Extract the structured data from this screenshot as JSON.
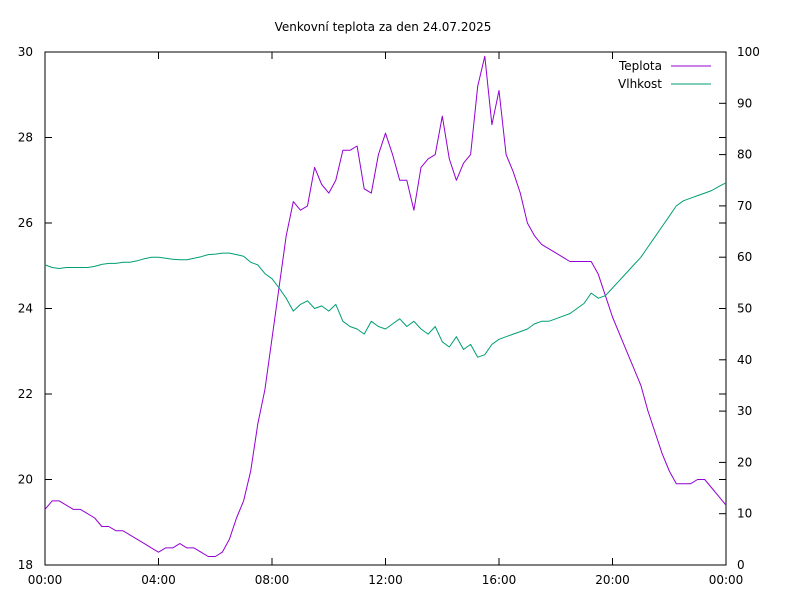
{
  "chart_data": {
    "type": "line",
    "title": "Venkovní teplota za den 24.07.2025",
    "xlabel": "",
    "ylabel": "",
    "y2label": "",
    "x_ticks": [
      "00:00",
      "04:00",
      "08:00",
      "12:00",
      "16:00",
      "20:00",
      "00:00"
    ],
    "x_range_hours": [
      0,
      24
    ],
    "y_left": {
      "range": [
        18,
        30
      ],
      "ticks": [
        "18",
        "20",
        "22",
        "24",
        "26",
        "28",
        "30"
      ]
    },
    "y_right": {
      "range": [
        0,
        100
      ],
      "ticks": [
        "0",
        "10",
        "20",
        "30",
        "40",
        "50",
        "60",
        "70",
        "80",
        "90",
        "100"
      ]
    },
    "grid": false,
    "legend_position": "top-right",
    "series": [
      {
        "name": "Teplota",
        "axis": "left",
        "color": "#9400d3",
        "points": [
          [
            0.0,
            19.3
          ],
          [
            0.25,
            19.5
          ],
          [
            0.5,
            19.5
          ],
          [
            0.75,
            19.4
          ],
          [
            1.0,
            19.3
          ],
          [
            1.25,
            19.3
          ],
          [
            1.5,
            19.2
          ],
          [
            1.75,
            19.1
          ],
          [
            2.0,
            18.9
          ],
          [
            2.25,
            18.9
          ],
          [
            2.5,
            18.8
          ],
          [
            2.75,
            18.8
          ],
          [
            3.0,
            18.7
          ],
          [
            3.25,
            18.6
          ],
          [
            3.5,
            18.5
          ],
          [
            3.75,
            18.4
          ],
          [
            4.0,
            18.3
          ],
          [
            4.25,
            18.4
          ],
          [
            4.5,
            18.4
          ],
          [
            4.75,
            18.5
          ],
          [
            5.0,
            18.4
          ],
          [
            5.25,
            18.4
          ],
          [
            5.5,
            18.3
          ],
          [
            5.75,
            18.2
          ],
          [
            6.0,
            18.2
          ],
          [
            6.25,
            18.3
          ],
          [
            6.5,
            18.6
          ],
          [
            6.75,
            19.1
          ],
          [
            7.0,
            19.5
          ],
          [
            7.25,
            20.2
          ],
          [
            7.5,
            21.3
          ],
          [
            7.75,
            22.1
          ],
          [
            8.0,
            23.3
          ],
          [
            8.25,
            24.5
          ],
          [
            8.5,
            25.7
          ],
          [
            8.75,
            26.5
          ],
          [
            9.0,
            26.3
          ],
          [
            9.25,
            26.4
          ],
          [
            9.5,
            27.3
          ],
          [
            9.75,
            26.9
          ],
          [
            10.0,
            26.7
          ],
          [
            10.25,
            27.0
          ],
          [
            10.5,
            27.7
          ],
          [
            10.75,
            27.7
          ],
          [
            11.0,
            27.8
          ],
          [
            11.25,
            26.8
          ],
          [
            11.5,
            26.7
          ],
          [
            11.75,
            27.6
          ],
          [
            12.0,
            28.1
          ],
          [
            12.25,
            27.6
          ],
          [
            12.5,
            27.0
          ],
          [
            12.75,
            27.0
          ],
          [
            13.0,
            26.3
          ],
          [
            13.25,
            27.3
          ],
          [
            13.5,
            27.5
          ],
          [
            13.75,
            27.6
          ],
          [
            14.0,
            28.5
          ],
          [
            14.25,
            27.5
          ],
          [
            14.5,
            27.0
          ],
          [
            14.75,
            27.4
          ],
          [
            15.0,
            27.6
          ],
          [
            15.25,
            29.2
          ],
          [
            15.5,
            29.9
          ],
          [
            15.75,
            28.3
          ],
          [
            16.0,
            29.1
          ],
          [
            16.25,
            27.6
          ],
          [
            16.5,
            27.2
          ],
          [
            16.75,
            26.7
          ],
          [
            17.0,
            26.0
          ],
          [
            17.25,
            25.7
          ],
          [
            17.5,
            25.5
          ],
          [
            17.75,
            25.4
          ],
          [
            18.0,
            25.3
          ],
          [
            18.25,
            25.2
          ],
          [
            18.5,
            25.1
          ],
          [
            18.75,
            25.1
          ],
          [
            19.0,
            25.1
          ],
          [
            19.25,
            25.1
          ],
          [
            19.5,
            24.8
          ],
          [
            19.75,
            24.3
          ],
          [
            20.0,
            23.8
          ],
          [
            20.25,
            23.4
          ],
          [
            20.5,
            23.0
          ],
          [
            20.75,
            22.6
          ],
          [
            21.0,
            22.2
          ],
          [
            21.25,
            21.6
          ],
          [
            21.5,
            21.1
          ],
          [
            21.75,
            20.6
          ],
          [
            22.0,
            20.2
          ],
          [
            22.25,
            19.9
          ],
          [
            22.5,
            19.9
          ],
          [
            22.75,
            19.9
          ],
          [
            23.0,
            20.0
          ],
          [
            23.25,
            20.0
          ],
          [
            23.5,
            19.8
          ],
          [
            23.75,
            19.6
          ],
          [
            24.0,
            19.4
          ]
        ]
      },
      {
        "name": "Vlhkost",
        "axis": "right",
        "color": "#009e73",
        "points": [
          [
            0.0,
            58.5
          ],
          [
            0.25,
            58.0
          ],
          [
            0.5,
            57.8
          ],
          [
            0.75,
            58.0
          ],
          [
            1.0,
            58.0
          ],
          [
            1.25,
            58.0
          ],
          [
            1.5,
            58.0
          ],
          [
            1.75,
            58.2
          ],
          [
            2.0,
            58.6
          ],
          [
            2.25,
            58.8
          ],
          [
            2.5,
            58.8
          ],
          [
            2.75,
            59.0
          ],
          [
            3.0,
            59.0
          ],
          [
            3.25,
            59.3
          ],
          [
            3.5,
            59.7
          ],
          [
            3.75,
            60.0
          ],
          [
            4.0,
            60.0
          ],
          [
            4.25,
            59.8
          ],
          [
            4.5,
            59.6
          ],
          [
            4.75,
            59.5
          ],
          [
            5.0,
            59.5
          ],
          [
            5.25,
            59.8
          ],
          [
            5.5,
            60.1
          ],
          [
            5.75,
            60.5
          ],
          [
            6.0,
            60.6
          ],
          [
            6.25,
            60.8
          ],
          [
            6.5,
            60.8
          ],
          [
            6.75,
            60.5
          ],
          [
            7.0,
            60.2
          ],
          [
            7.25,
            59.0
          ],
          [
            7.5,
            58.5
          ],
          [
            7.75,
            56.8
          ],
          [
            8.0,
            55.8
          ],
          [
            8.25,
            54.0
          ],
          [
            8.5,
            52.0
          ],
          [
            8.75,
            49.5
          ],
          [
            9.0,
            50.8
          ],
          [
            9.25,
            51.5
          ],
          [
            9.5,
            50.0
          ],
          [
            9.75,
            50.5
          ],
          [
            10.0,
            49.5
          ],
          [
            10.25,
            50.8
          ],
          [
            10.5,
            47.5
          ],
          [
            10.75,
            46.5
          ],
          [
            11.0,
            46.0
          ],
          [
            11.25,
            45.0
          ],
          [
            11.5,
            47.5
          ],
          [
            11.75,
            46.5
          ],
          [
            12.0,
            46.0
          ],
          [
            12.25,
            47.0
          ],
          [
            12.5,
            48.0
          ],
          [
            12.75,
            46.5
          ],
          [
            13.0,
            47.5
          ],
          [
            13.25,
            46.0
          ],
          [
            13.5,
            45.0
          ],
          [
            13.75,
            46.5
          ],
          [
            14.0,
            43.5
          ],
          [
            14.25,
            42.5
          ],
          [
            14.5,
            44.5
          ],
          [
            14.75,
            42.0
          ],
          [
            15.0,
            43.0
          ],
          [
            15.25,
            40.5
          ],
          [
            15.5,
            41.0
          ],
          [
            15.75,
            43.0
          ],
          [
            16.0,
            44.0
          ],
          [
            16.25,
            44.5
          ],
          [
            16.5,
            45.0
          ],
          [
            16.75,
            45.5
          ],
          [
            17.0,
            46.0
          ],
          [
            17.25,
            47.0
          ],
          [
            17.5,
            47.5
          ],
          [
            17.75,
            47.5
          ],
          [
            18.0,
            48.0
          ],
          [
            18.25,
            48.5
          ],
          [
            18.5,
            49.0
          ],
          [
            18.75,
            50.0
          ],
          [
            19.0,
            51.0
          ],
          [
            19.25,
            53.0
          ],
          [
            19.5,
            52.0
          ],
          [
            19.75,
            52.5
          ],
          [
            20.0,
            54.0
          ],
          [
            20.25,
            55.5
          ],
          [
            20.5,
            57.0
          ],
          [
            20.75,
            58.5
          ],
          [
            21.0,
            60.0
          ],
          [
            21.25,
            62.0
          ],
          [
            21.5,
            64.0
          ],
          [
            21.75,
            66.0
          ],
          [
            22.0,
            68.0
          ],
          [
            22.25,
            70.0
          ],
          [
            22.5,
            71.0
          ],
          [
            22.75,
            71.5
          ],
          [
            23.0,
            72.0
          ],
          [
            23.25,
            72.5
          ],
          [
            23.5,
            73.0
          ],
          [
            23.75,
            73.8
          ],
          [
            24.0,
            74.5
          ]
        ]
      }
    ]
  }
}
